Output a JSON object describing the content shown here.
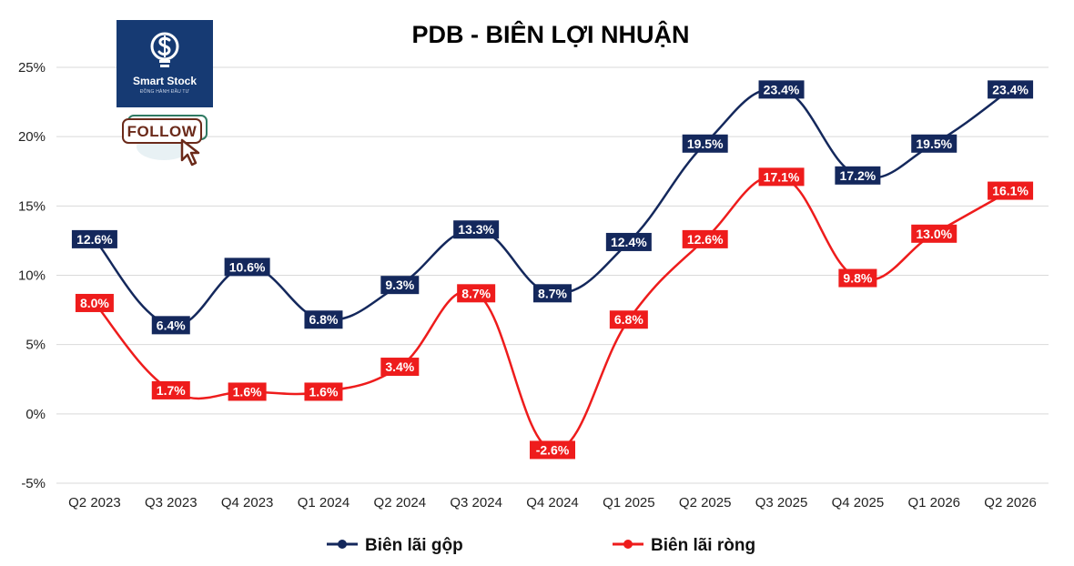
{
  "chart_data": {
    "type": "line",
    "title": "PDB - BIÊN LỢI NHUẬN",
    "categories": [
      "Q2 2023",
      "Q3 2023",
      "Q4 2023",
      "Q1 2024",
      "Q2 2024",
      "Q3 2024",
      "Q4 2024",
      "Q1 2025",
      "Q2 2025",
      "Q3 2025",
      "Q4 2025",
      "Q1 2026",
      "Q2 2026"
    ],
    "series": [
      {
        "name": "Biên lãi gộp",
        "color": "#14285c",
        "values": [
          12.6,
          6.4,
          10.6,
          6.8,
          9.3,
          13.3,
          8.7,
          12.4,
          19.5,
          23.4,
          17.2,
          19.5,
          23.4
        ],
        "labels": [
          "12.6%",
          "6.4%",
          "10.6%",
          "6.8%",
          "9.3%",
          "13.3%",
          "8.7%",
          "12.4%",
          "19.5%",
          "23.4%",
          "17.2%",
          "19.5%",
          "23.4%"
        ]
      },
      {
        "name": "Biên lãi ròng",
        "color": "#ee1c1c",
        "values": [
          8.0,
          1.7,
          1.6,
          1.6,
          3.4,
          8.7,
          -2.6,
          6.8,
          12.6,
          17.1,
          9.8,
          13.0,
          16.1
        ],
        "labels": [
          "8.0%",
          "1.7%",
          "1.6%",
          "1.6%",
          "3.4%",
          "8.7%",
          "-2.6%",
          "6.8%",
          "12.6%",
          "17.1%",
          "9.8%",
          "13.0%",
          "16.1%"
        ]
      }
    ],
    "yticks": [
      25,
      20,
      15,
      10,
      5,
      0,
      -5
    ],
    "ytick_labels": [
      "25%",
      "20%",
      "15%",
      "10%",
      "5%",
      "0%",
      "-5%"
    ],
    "ylim": [
      -5,
      25
    ],
    "grid": true,
    "legend_position": "bottom"
  },
  "logo": {
    "brand": "Smart Stock",
    "tagline": "ĐỒNG HÀNH ĐẦU TƯ",
    "follow_label": "FOLLOW",
    "icons": [
      "lightbulb-dollar-icon",
      "cursor-arrow-icon"
    ]
  }
}
